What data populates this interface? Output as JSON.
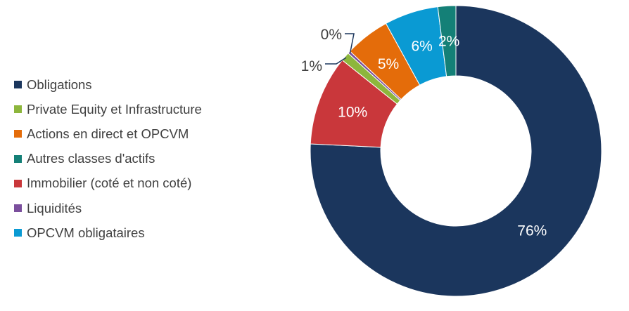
{
  "chart_data": {
    "type": "pie",
    "variant": "donut",
    "legend_position": "left",
    "categories": [
      "Obligations",
      "Private Equity et Infrastructure",
      "Actions en direct et OPCVM",
      "Autres classes d'actifs",
      "Immobilier (coté et non coté)",
      "Liquidités",
      "OPCVM obligataires"
    ],
    "colors": [
      "#1b365d",
      "#8db63c",
      "#e46c0a",
      "#148077",
      "#c9373b",
      "#7b4f9d",
      "#0a9ad3"
    ],
    "slices": [
      {
        "name": "Obligations",
        "value": 76,
        "label": "76%"
      },
      {
        "name": "Immobilier (coté et non coté)",
        "value": 10,
        "label": "10%"
      },
      {
        "name": "Private Equity et Infrastructure",
        "value": 1,
        "label": "1%"
      },
      {
        "name": "Liquidités",
        "value": 0.3,
        "label": "0%"
      },
      {
        "name": "Actions en direct et OPCVM",
        "value": 5,
        "label": "5%"
      },
      {
        "name": "OPCVM obligataires",
        "value": 6,
        "label": "6%"
      },
      {
        "name": "Autres classes d'actifs",
        "value": 2,
        "label": "2%"
      }
    ]
  }
}
